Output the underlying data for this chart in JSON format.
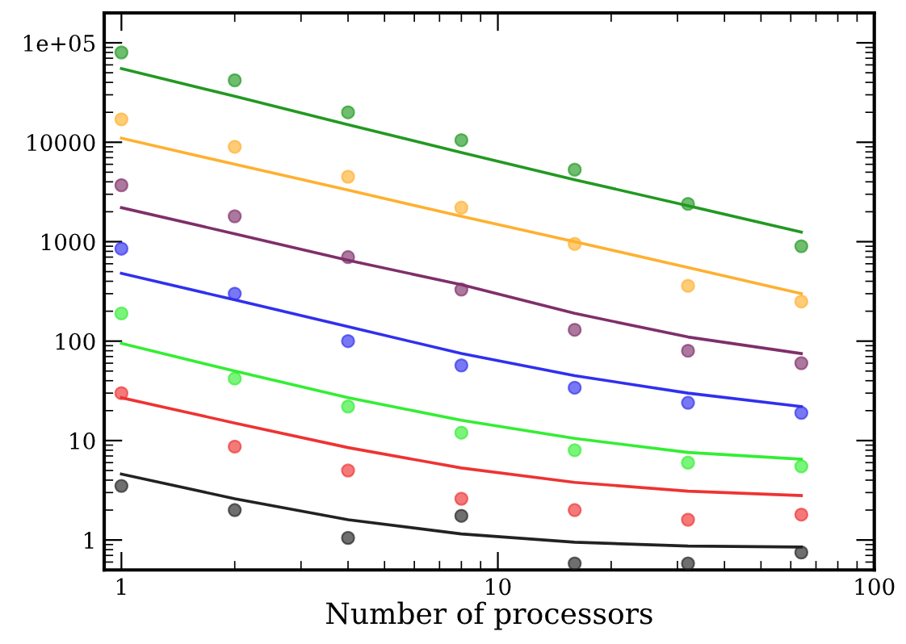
{
  "chart_data": {
    "type": "scatter",
    "xlabel": "Number of processors",
    "log": "xy",
    "marker": "circle",
    "xlim": [
      0.9,
      100
    ],
    "ylim": [
      0.5,
      200000
    ],
    "xticks": [
      1,
      10,
      100
    ],
    "yticks": [
      1,
      10,
      100,
      1000,
      10000,
      {
        "value": 100000,
        "label": "1e+05"
      }
    ],
    "x": [
      1,
      2,
      4,
      8,
      16,
      32,
      64
    ],
    "series": [
      {
        "color": "#229922",
        "values": [
          80000,
          42000,
          20000,
          10500,
          5300,
          2400,
          900
        ]
      },
      {
        "color": "#ffb030",
        "values": [
          17000,
          9000,
          4500,
          2200,
          950,
          360,
          250
        ]
      },
      {
        "color": "#7f2f6a",
        "values": [
          3700,
          1800,
          700,
          330,
          130,
          80,
          60
        ]
      },
      {
        "color": "#3030ee",
        "values": [
          850,
          300,
          100,
          57,
          34,
          24,
          19
        ]
      },
      {
        "color": "#33ee33",
        "values": [
          190,
          42,
          22,
          12,
          8,
          6,
          5.5
        ]
      },
      {
        "color": "#ee3333",
        "values": [
          30,
          8.7,
          5,
          2.6,
          2,
          1.6,
          1.8
        ]
      },
      {
        "color": "#222222",
        "values": [
          3.5,
          2,
          1.05,
          1.75,
          0.58,
          0.58,
          0.75
        ]
      },
      {
        "type": "line",
        "marker": "none",
        "color": "#229922",
        "values": [
          55000,
          29000,
          15000,
          7900,
          4200,
          2300,
          1250
        ]
      },
      {
        "type": "line",
        "marker": "none",
        "color": "#ffb030",
        "values": [
          11000,
          6000,
          3300,
          1800,
          1000,
          550,
          300
        ]
      },
      {
        "type": "line",
        "marker": "none",
        "color": "#7f2f6a",
        "values": [
          2200,
          1200,
          650,
          370,
          190,
          110,
          75
        ]
      },
      {
        "type": "line",
        "marker": "none",
        "color": "#3030ee",
        "values": [
          480,
          260,
          140,
          75,
          45,
          30,
          22
        ]
      },
      {
        "type": "line",
        "marker": "none",
        "color": "#33ee33",
        "values": [
          95,
          50,
          27,
          16,
          10.5,
          7.6,
          6.5
        ]
      },
      {
        "type": "line",
        "marker": "none",
        "color": "#ee3333",
        "values": [
          27,
          15,
          8.5,
          5.3,
          3.8,
          3.1,
          2.8
        ]
      },
      {
        "type": "line",
        "marker": "none",
        "color": "#222222",
        "values": [
          4.6,
          2.6,
          1.6,
          1.15,
          0.95,
          0.87,
          0.85
        ]
      }
    ]
  }
}
